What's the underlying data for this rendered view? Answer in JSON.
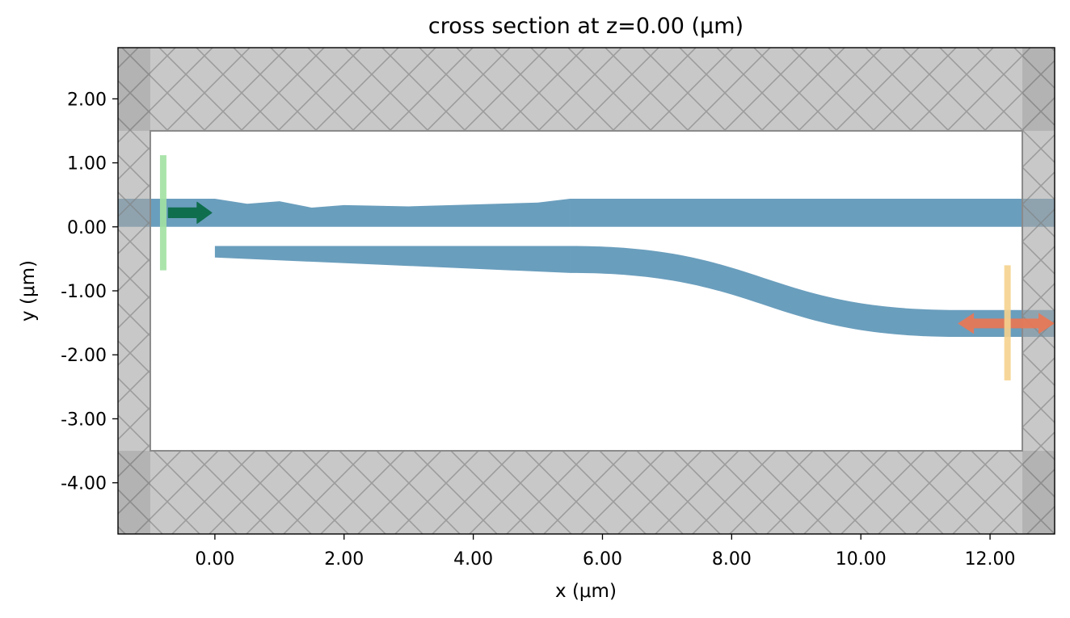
{
  "title": "cross section at z=0.00 (μm)",
  "xlabel": "x (μm)",
  "ylabel": "y (μm)",
  "colors": {
    "waveguide": "#6a9ebd",
    "pml": "#a6a6a6",
    "pml_corner": "#8c8c8c",
    "hatch": "#7f7f7f",
    "source": "#a3e2a3",
    "source_arrow": "#0f6e4e",
    "monitor": "#f6d38f",
    "monitor_arrow": "#e97755"
  },
  "chart_data": {
    "type": "diagram",
    "xlim": [
      -1.5,
      13.0
    ],
    "ylim": [
      -4.8,
      2.8
    ],
    "xticks": [
      0,
      2,
      4,
      6,
      8,
      10,
      12
    ],
    "yticks": [
      2,
      1,
      0,
      -1,
      -2,
      -3,
      -4
    ],
    "xtick_labels": [
      "0.00",
      "2.00",
      "4.00",
      "6.00",
      "8.00",
      "10.00",
      "12.00"
    ],
    "ytick_labels": [
      "2.00",
      "1.00",
      "0.00",
      "-1.00",
      "-2.00",
      "-3.00",
      "-4.00"
    ],
    "simulation_domain": {
      "x": [
        -1.0,
        12.5
      ],
      "y": [
        -3.5,
        1.5
      ]
    },
    "pml": [
      {
        "name": "pml-top",
        "x": [
          -1.5,
          13.0
        ],
        "y": [
          1.5,
          2.8
        ]
      },
      {
        "name": "pml-bottom",
        "x": [
          -1.5,
          13.0
        ],
        "y": [
          -4.8,
          -3.5
        ]
      },
      {
        "name": "pml-left",
        "x": [
          -1.5,
          -1.0
        ],
        "y": [
          -4.8,
          2.8
        ]
      },
      {
        "name": "pml-right",
        "x": [
          12.5,
          13.0
        ],
        "y": [
          -4.8,
          2.8
        ]
      }
    ],
    "structures": [
      {
        "name": "upper-waveguide-taper",
        "points": [
          [
            -1.5,
            0.44
          ],
          [
            0.0,
            0.44
          ],
          [
            0.5,
            0.36
          ],
          [
            1.0,
            0.4
          ],
          [
            1.5,
            0.3
          ],
          [
            2.0,
            0.34
          ],
          [
            3.0,
            0.32
          ],
          [
            4.0,
            0.35
          ],
          [
            5.0,
            0.38
          ],
          [
            5.5,
            0.44
          ],
          [
            5.5,
            0.0
          ],
          [
            -1.5,
            0.0
          ]
        ]
      },
      {
        "name": "upper-waveguide-straight",
        "points": [
          [
            5.5,
            0.44
          ],
          [
            13.0,
            0.44
          ],
          [
            13.0,
            0.0
          ],
          [
            5.5,
            0.0
          ]
        ]
      },
      {
        "name": "lower-waveguide-taper",
        "points": [
          [
            0.0,
            -0.3
          ],
          [
            5.5,
            -0.3
          ],
          [
            5.5,
            -0.72
          ],
          [
            0.0,
            -0.48
          ]
        ]
      },
      {
        "name": "lower-waveguide-sbend",
        "top_start": [
          5.5,
          -0.3
        ],
        "top_end": [
          11.5,
          -1.3
        ],
        "bottom_start": [
          5.5,
          -0.72
        ],
        "bottom_end": [
          11.5,
          -1.72
        ],
        "straight_end_x": 13.0
      }
    ],
    "source": {
      "x": -0.8,
      "y_range": [
        -0.68,
        1.12
      ],
      "arrow_x": [
        -0.72,
        -0.05
      ],
      "arrow_y": 0.22
    },
    "monitor": {
      "x": 12.27,
      "y_range": [
        -2.4,
        -0.6
      ],
      "arrow_x": [
        11.5,
        13.0
      ],
      "arrow_y": -1.51
    }
  }
}
